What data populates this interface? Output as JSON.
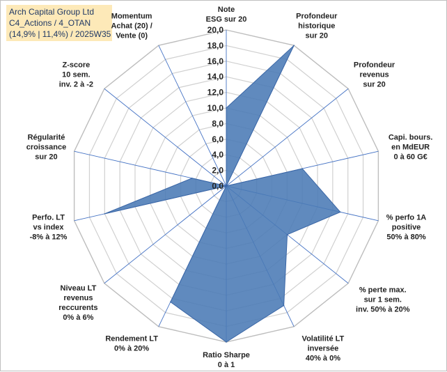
{
  "header": {
    "line1": "Arch Capital Group Ltd",
    "line2": "C4_Actions / 4_OTAN",
    "line3": "(14,9% | 11,4%) / 2025W35"
  },
  "colors": {
    "fill": "#4a7ab5",
    "stroke": "#3a66a6",
    "grid": "#d0d0d0",
    "spoke": "#4472c4",
    "header_bg": "#fde9b8",
    "header_text": "#1f3864"
  },
  "chart_data": {
    "type": "radar",
    "title": "",
    "rlim": [
      0,
      20
    ],
    "r_step": 2,
    "tick_labels": [
      "0,0",
      "2,0",
      "4,0",
      "6,0",
      "8,0",
      "10,0",
      "12,0",
      "14,0",
      "16,0",
      "18,0",
      "20,0"
    ],
    "grid": true,
    "axes": [
      [
        "Note",
        "ESG sur 20"
      ],
      [
        "Profondeur",
        "historique",
        "sur 20"
      ],
      [
        "Profondeur",
        "revenus",
        "sur 20"
      ],
      [
        "Capi. bours.",
        "en MdEUR",
        "0 à 60 G€"
      ],
      [
        "% perfo 1A",
        "positive",
        "50% à 80%"
      ],
      [
        "% perte max.",
        "sur 1 sem.",
        "inv. 50% à 20%"
      ],
      [
        "Volatilité LT",
        "inversée",
        "40% à 0%"
      ],
      [
        "Ratio Sharpe",
        "0 à 1"
      ],
      [
        "Rendement LT",
        "0% à 20%"
      ],
      [
        "Niveau LT",
        "revenus",
        "reccurents",
        "0% à 6%"
      ],
      [
        "Perfo. LT",
        "vs index",
        "-8% à 12%"
      ],
      [
        "Régularité",
        "croissance",
        "sur 20"
      ],
      [
        "Z-score",
        "10 sem.",
        "inv. 2 à -2"
      ],
      [
        "Momentum",
        "Achat (20) /",
        "Vente (0)"
      ]
    ],
    "series": [
      {
        "values": [
          10,
          20,
          0,
          10,
          15,
          10,
          17,
          20,
          16.5,
          0,
          16,
          4.5,
          0,
          0
        ]
      }
    ]
  }
}
